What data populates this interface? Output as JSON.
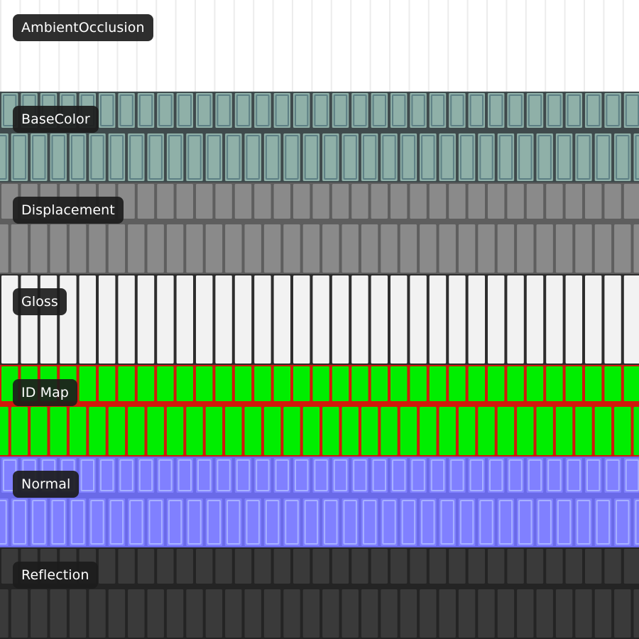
{
  "maps": [
    {
      "key": "ao",
      "label": "AmbientOcclusion",
      "colors": {
        "base": "#ffffff",
        "tile": "#ffffff",
        "grout": "#ececec"
      }
    },
    {
      "key": "basecolor",
      "label": "BaseColor",
      "colors": {
        "base": "#3f4a4c",
        "tile": "#8fb0a8",
        "grout": "#2f3838",
        "edge": "#5d7f84"
      }
    },
    {
      "key": "displacement",
      "label": "Displacement",
      "colors": {
        "base": "#5e5e5e",
        "tile": "#8a8a8a",
        "grout": "#5a5a5a"
      }
    },
    {
      "key": "gloss",
      "label": "Gloss",
      "colors": {
        "base": "#2e2e2e",
        "tile": "#f2f2f2",
        "grout": "#2a2a2a"
      }
    },
    {
      "key": "idmap",
      "label": "ID Map",
      "colors": {
        "base": "#d11a0c",
        "tile": "#00ee00",
        "grout": "#d11a0c"
      }
    },
    {
      "key": "normal",
      "label": "Normal",
      "colors": {
        "base": "#6a6ae8",
        "tile": "#8080ff",
        "grout": "#b86cd8",
        "edge": "#a7b1ff"
      }
    },
    {
      "key": "reflection",
      "label": "Reflection",
      "colors": {
        "base": "#242424",
        "tile": "#3a3a3a",
        "grout": "#202020"
      }
    }
  ]
}
